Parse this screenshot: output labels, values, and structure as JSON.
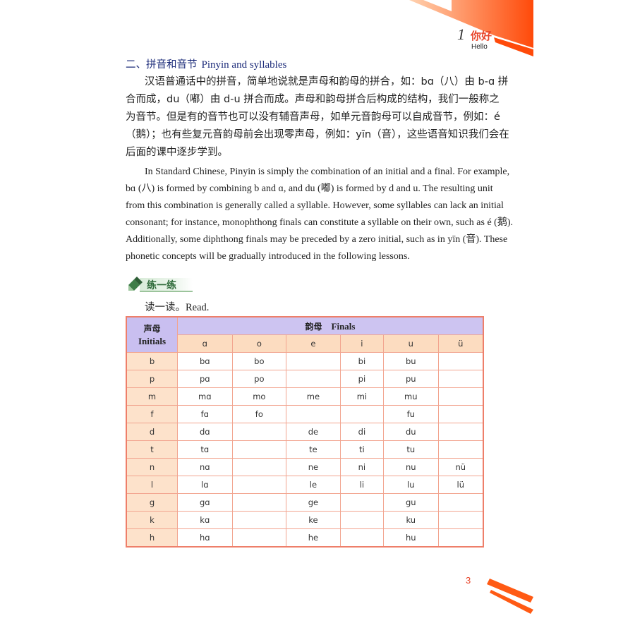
{
  "header": {
    "chapter_number": "1",
    "chapter_title_zh": "你好",
    "chapter_title_en": "Hello",
    "accent_color": "#ff5a14"
  },
  "section": {
    "title_zh": "二、拼音和音节",
    "title_en": "Pinyin and syllables",
    "paragraph_zh_lines": [
      "汉语普通话中的拼音，简单地说就是声母和韵母的拼合，如：bɑ（八）由 b-ɑ 拼",
      "合而成，du（嘟）由 d-u 拼合而成。声母和韵母拼合后构成的结构，我们一般称之",
      "为音节。但是有的音节也可以没有辅音声母，如单元音韵母可以自成音节，例如：é",
      "（鹅）；也有些复元音韵母前会出现零声母，例如：yīn（音），这些语音知识我们会在",
      "后面的课中逐步学到。"
    ],
    "paragraph_en_lines": [
      "In Standard Chinese, Pinyin is simply the combination of an initial and a final. For example,",
      "bɑ (八) is formed by combining b and ɑ, and du (嘟) is formed by d and u. The resulting unit",
      "from this combination is generally called a syllable. However, some syllables can lack an initial",
      "consonant; for instance, monophthong finals can constitute a syllable on their own, such as é (鹅).",
      "Additionally, some diphthong finals may be preceded by a zero initial, such as in yīn (音). These",
      "phonetic concepts will be gradually introduced in the following lessons."
    ]
  },
  "practice": {
    "label": "练一练",
    "icon": "pencil-icon",
    "instruction_zh": "读一读。",
    "instruction_en": "Read."
  },
  "table": {
    "initials_header_zh": "声母",
    "initials_header_en": "Initials",
    "finals_header_zh": "韵母",
    "finals_header_en": "Finals",
    "finals": [
      "ɑ",
      "o",
      "e",
      "i",
      "u",
      "ü"
    ],
    "rows": [
      {
        "initial": "b",
        "cells": [
          "bɑ",
          "bo",
          "",
          "bi",
          "bu",
          ""
        ]
      },
      {
        "initial": "p",
        "cells": [
          "pɑ",
          "po",
          "",
          "pi",
          "pu",
          ""
        ]
      },
      {
        "initial": "m",
        "cells": [
          "mɑ",
          "mo",
          "me",
          "mi",
          "mu",
          ""
        ]
      },
      {
        "initial": "f",
        "cells": [
          "fɑ",
          "fo",
          "",
          "",
          "fu",
          ""
        ]
      },
      {
        "initial": "d",
        "cells": [
          "dɑ",
          "",
          "de",
          "di",
          "du",
          ""
        ]
      },
      {
        "initial": "t",
        "cells": [
          "tɑ",
          "",
          "te",
          "ti",
          "tu",
          ""
        ]
      },
      {
        "initial": "n",
        "cells": [
          "nɑ",
          "",
          "ne",
          "ni",
          "nu",
          "nü"
        ]
      },
      {
        "initial": "l",
        "cells": [
          "lɑ",
          "",
          "le",
          "li",
          "lu",
          "lü"
        ]
      },
      {
        "initial": "g",
        "cells": [
          "gɑ",
          "",
          "ge",
          "",
          "gu",
          ""
        ]
      },
      {
        "initial": "k",
        "cells": [
          "kɑ",
          "",
          "ke",
          "",
          "ku",
          ""
        ]
      },
      {
        "initial": "h",
        "cells": [
          "hɑ",
          "",
          "he",
          "",
          "hu",
          ""
        ]
      }
    ]
  },
  "footer": {
    "page_number": "3"
  }
}
